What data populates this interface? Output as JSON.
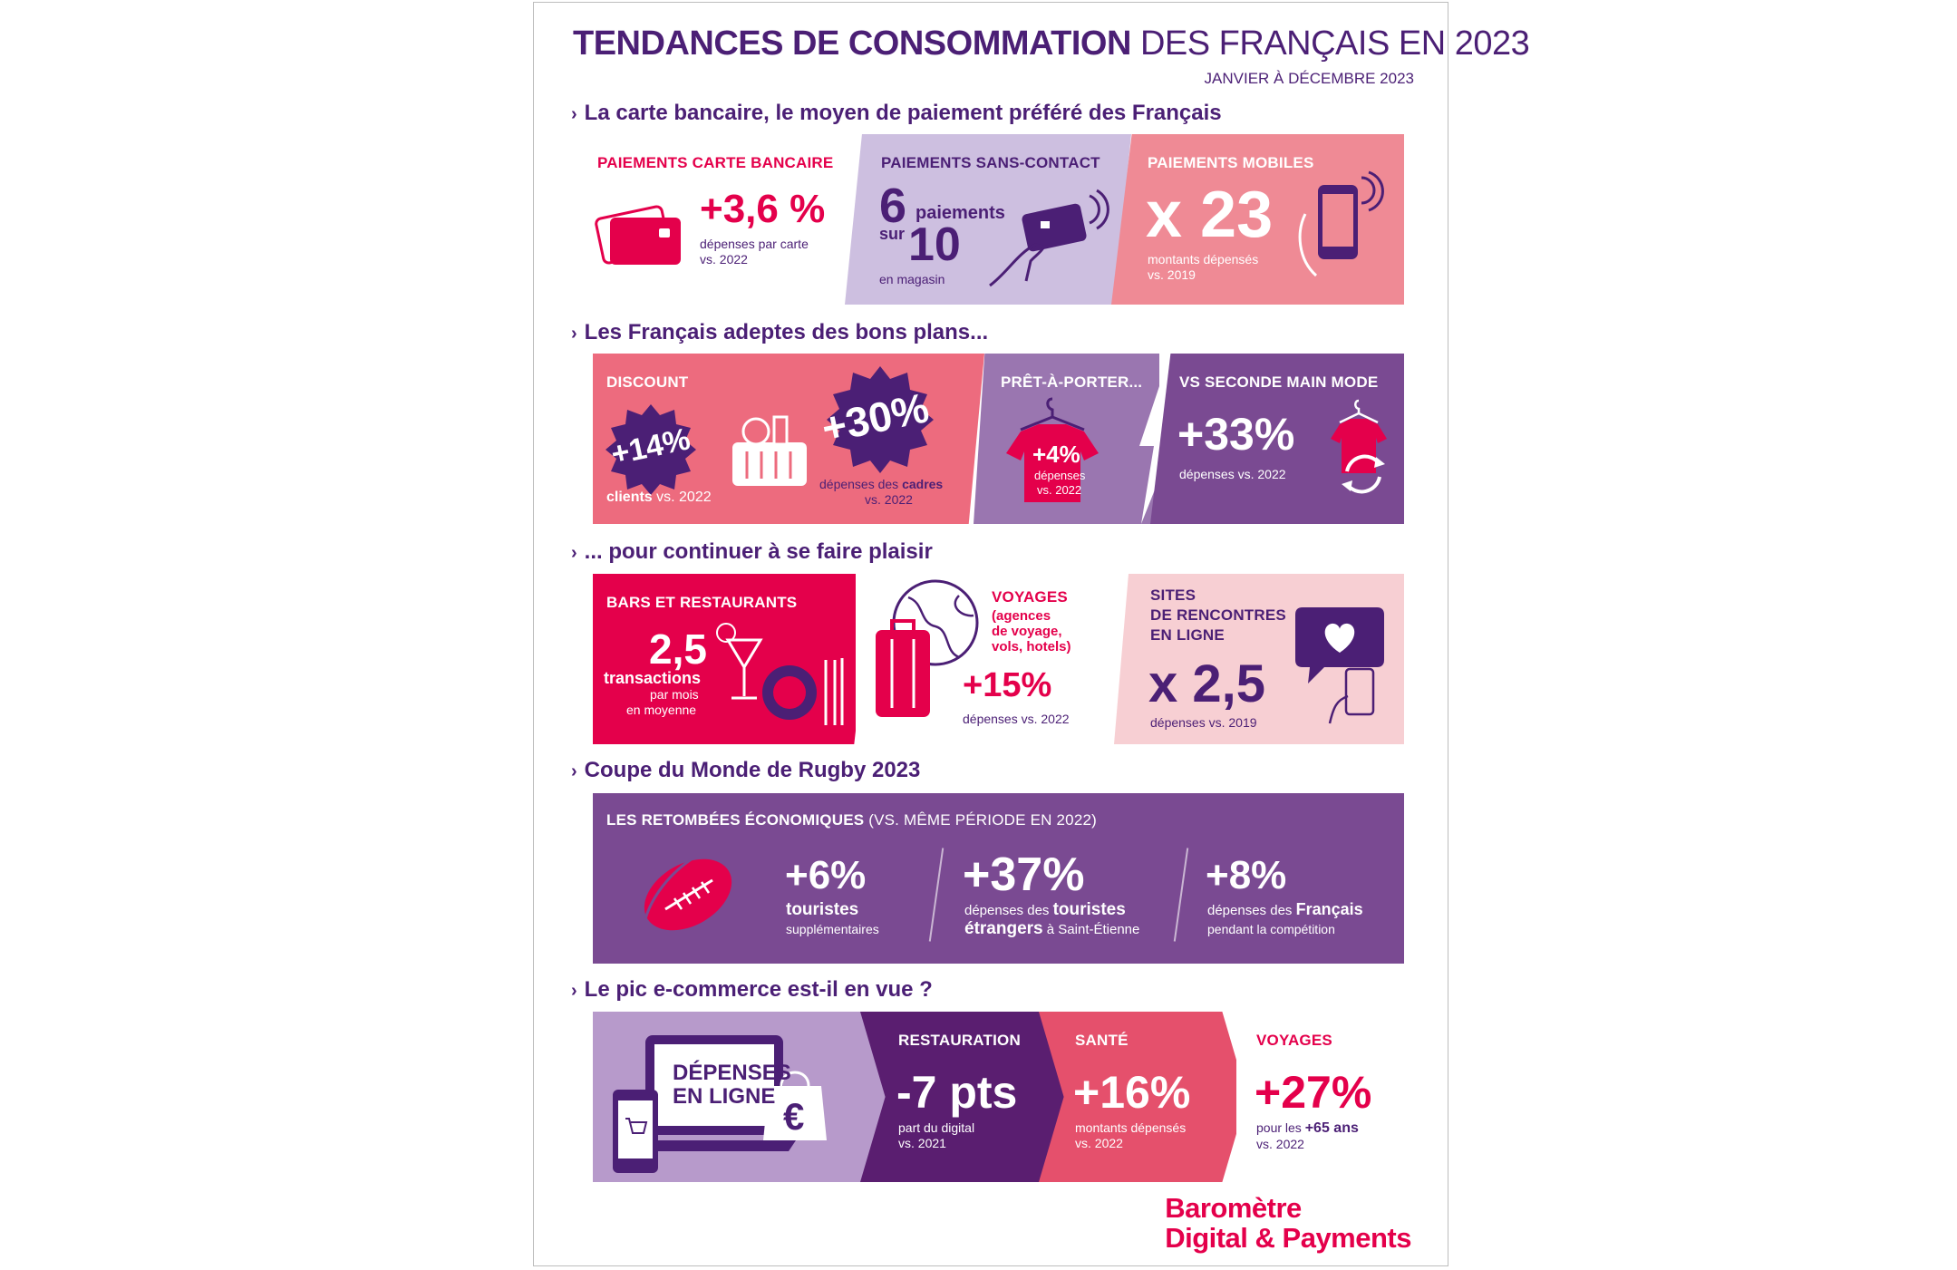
{
  "header": {
    "title_bold": "TENDANCES DE CONSOMMATION",
    "title_light": "DES FRANÇAIS EN 2023",
    "subtitle": "JANVIER À DÉCEMBRE 2023"
  },
  "sections": {
    "s1": "La carte bancaire, le moyen de paiement préféré des Français",
    "s2": "Les Français adeptes des bons plans...",
    "s3": "... pour continuer à se faire plaisir",
    "s4": "Coupe du Monde de Rugby 2023",
    "s5": "Le pic e-commerce est-il en vue ?"
  },
  "card_payments": {
    "label": "PAIEMENTS CARTE BANCAIRE",
    "value": "+3,6 %",
    "desc1": "dépenses par carte",
    "desc2": "vs. 2022"
  },
  "contactless": {
    "label": "PAIEMENTS  SANS-CONTACT",
    "num": "6",
    "word1": "paiements",
    "sur": "sur",
    "den": "10",
    "desc": "en magasin"
  },
  "mobile": {
    "label": "PAIEMENTS MOBILES",
    "value": "x 23",
    "desc1": "montants dépensés",
    "desc2": "vs. 2019"
  },
  "discount": {
    "label": "DISCOUNT",
    "badge1": "+14%",
    "desc1_bold": "clients",
    "desc1": "vs. 2022",
    "badge2": "+30%",
    "desc2a": "dépenses des",
    "desc2a_bold": "cadres",
    "desc2b": "vs. 2022"
  },
  "ready_to_wear": {
    "label": "PRÊT-À-PORTER...",
    "value": "+4%",
    "desc1": "dépenses",
    "desc2": "vs. 2022"
  },
  "second_hand": {
    "label": "VS SECONDE MAIN MODE",
    "value": "+33%",
    "desc": "dépenses vs. 2022"
  },
  "bars": {
    "label": "BARS ET RESTAURANTS",
    "value": "2,5",
    "desc_bold": "transactions",
    "desc1": "par mois",
    "desc2": "en moyenne"
  },
  "travel": {
    "label": "VOYAGES",
    "sub1": "(agences",
    "sub2": "de voyage,",
    "sub3": "vols, hotels)",
    "value": "+15%",
    "desc": "dépenses vs. 2022"
  },
  "dating": {
    "label1": "SITES",
    "label2": "DE RENCONTRES",
    "label3": "EN LIGNE",
    "value": "x 2,5",
    "desc": "dépenses vs. 2019"
  },
  "rugby": {
    "label_bold": "LES RETOMBÉES ÉCONOMIQUES",
    "label_light": "(VS. MÊME PÉRIODE EN 2022)",
    "stat1": "+6%",
    "stat1_bold": "touristes",
    "stat1_desc": "supplémentaires",
    "stat2": "+37%",
    "stat2_pre": "dépenses des",
    "stat2_bold1": "touristes",
    "stat2_bold2": "étrangers",
    "stat2_post": "à Saint-Étienne",
    "stat3": "+8%",
    "stat3_pre": "dépenses des",
    "stat3_bold": "Français",
    "stat3_post": "pendant la compétition"
  },
  "ecommerce": {
    "screen1": "DÉPENSES",
    "screen2": "EN LIGNE",
    "resto_label": "RESTAURATION",
    "resto_value": "-7 pts",
    "resto_desc1": "part du digital",
    "resto_desc2": "vs. 2021",
    "sante_label": "SANTÉ",
    "sante_value": "+16%",
    "sante_desc1": "montants dépensés",
    "sante_desc2": "vs. 2022",
    "voyages_label": "VOYAGES",
    "voyages_value": "+27%",
    "voyages_desc1": "pour les",
    "voyages_desc1_bold": "+65 ans",
    "voyages_desc2": "vs. 2022"
  },
  "footer": {
    "line1": "Baromètre",
    "line2": "Digital & Payments"
  },
  "colors": {
    "purple": "#4b1f75",
    "pink": "#e4004b",
    "light_lilac": "#cdbfe0",
    "salmon": "#ef8a95",
    "coral": "#ed6b7e",
    "mauve": "#9a76b0",
    "violet": "#7a4a92",
    "blush": "#f7cfd3"
  }
}
